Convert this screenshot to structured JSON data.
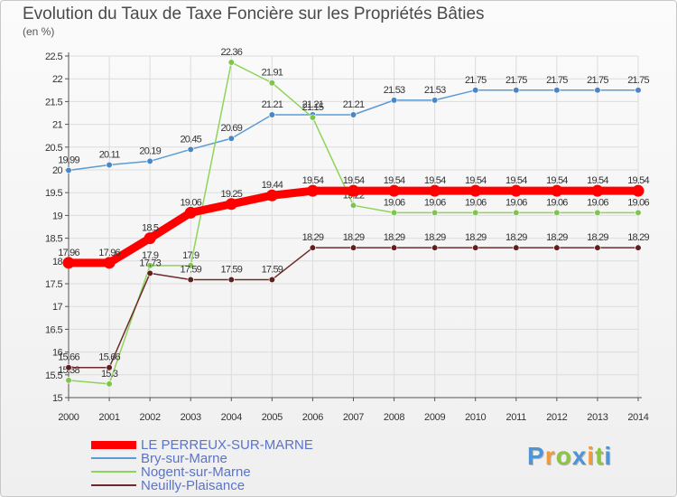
{
  "chart_data": {
    "type": "line",
    "title": "Evolution du Taux de Taxe Foncière sur les Propriétés Bâties",
    "ylabel": "(en %)",
    "xlabel": "",
    "ylim": [
      15,
      22.5
    ],
    "yticks": [
      "15",
      "15.5",
      "16",
      "16.5",
      "17",
      "17.5",
      "18",
      "18.5",
      "19",
      "19.5",
      "20",
      "20.5",
      "21",
      "21.5",
      "22",
      "22.5"
    ],
    "categories": [
      "2000",
      "2001",
      "2002",
      "2003",
      "2004",
      "2005",
      "2006",
      "2007",
      "2008",
      "2009",
      "2010",
      "2011",
      "2012",
      "2013",
      "2014"
    ],
    "series": [
      {
        "name": "Bry-sur-Marne",
        "color": "#5b9bd5",
        "values": [
          19.99,
          20.11,
          20.19,
          20.45,
          20.69,
          21.21,
          21.21,
          21.21,
          21.53,
          21.53,
          21.75,
          21.75,
          21.75,
          21.75,
          21.75
        ],
        "labels": [
          "19.99",
          "20.11",
          "20.19",
          "20.45",
          "20.69",
          "21.21",
          "21.21",
          "21.21",
          "21.53",
          "21.53",
          "21.75",
          "21.75",
          "21.75",
          "21.75",
          "21.75"
        ]
      },
      {
        "name": "Nogent-sur-Marne",
        "color": "#8fd45a",
        "values": [
          15.38,
          15.3,
          17.9,
          17.9,
          22.36,
          21.91,
          21.15,
          19.22,
          19.06,
          19.06,
          19.06,
          19.06,
          19.06,
          19.06,
          19.06
        ],
        "labels": [
          "15.38",
          "15.3",
          "17.9",
          "17.9",
          "22.36",
          "21.91",
          "21.15",
          "19.22",
          "19.06",
          "19.06",
          "19.06",
          "19.06",
          "19.06",
          "19.06",
          "19.06"
        ]
      },
      {
        "name": "Neuilly-Plaisance",
        "color": "#6e2a2a",
        "values": [
          15.66,
          15.66,
          17.73,
          17.59,
          17.59,
          17.59,
          18.29,
          18.29,
          18.29,
          18.29,
          18.29,
          18.29,
          18.29,
          18.29,
          18.29
        ],
        "labels": [
          "15.66",
          "15.66",
          "17.73",
          "17.59",
          "17.59",
          "17.59",
          "18.29",
          "18.29",
          "18.29",
          "18.29",
          "18.29",
          "18.29",
          "18.29",
          "18.29",
          "18.29"
        ]
      },
      {
        "name": "LE PERREUX-SUR-MARNE",
        "color": "#ff0000",
        "values": [
          17.96,
          17.96,
          18.5,
          19.06,
          19.25,
          19.44,
          19.54,
          19.54,
          19.54,
          19.54,
          19.54,
          19.54,
          19.54,
          19.54,
          19.54
        ],
        "labels": [
          "17.96",
          "17.96",
          "18.5",
          "19.06",
          "19.25",
          "19.44",
          "19.54",
          "19.54",
          "19.54",
          "19.54",
          "19.54",
          "19.54",
          "19.54",
          "19.54",
          "19.54"
        ]
      }
    ],
    "legend": [
      "LE PERREUX-SUR-MARNE",
      "Bry-sur-Marne",
      "Nogent-sur-Marne",
      "Neuilly-Plaisance"
    ],
    "legend_position": "bottom-left"
  },
  "brand": {
    "letters": [
      {
        "ch": "P",
        "color": "#4f94d4"
      },
      {
        "ch": "r",
        "color": "#f29a3a"
      },
      {
        "ch": "o",
        "color": "#8cc63f"
      },
      {
        "ch": "x",
        "color": "#4f94d4"
      },
      {
        "ch": "i",
        "color": "#f29a3a"
      },
      {
        "ch": "t",
        "color": "#8cc63f"
      },
      {
        "ch": "i",
        "color": "#4f94d4"
      }
    ]
  }
}
